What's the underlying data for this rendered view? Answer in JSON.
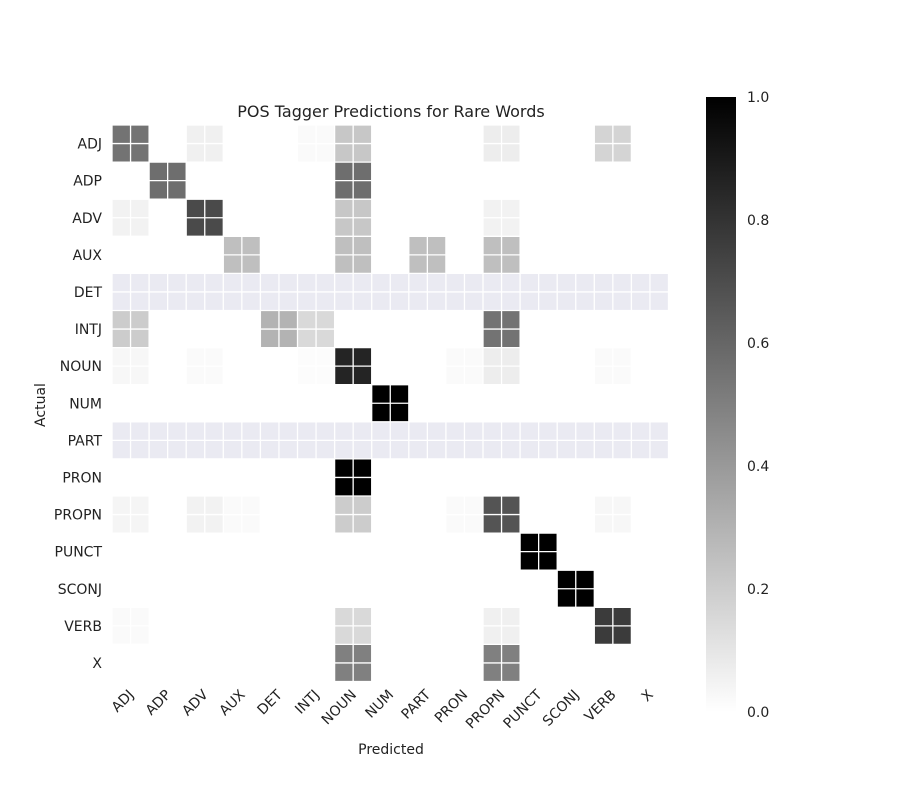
{
  "chart_data": {
    "type": "heatmap",
    "title": "POS Tagger Predictions for Rare Words",
    "xlabel": "Predicted",
    "ylabel": "Actual",
    "x_categories": [
      "ADJ",
      "ADP",
      "ADV",
      "AUX",
      "DET",
      "INTJ",
      "NOUN",
      "NUM",
      "PART",
      "PRON",
      "PROPN",
      "PUNCT",
      "SCONJ",
      "VERB",
      "X"
    ],
    "y_categories": [
      "ADJ",
      "ADP",
      "ADV",
      "AUX",
      "DET",
      "INTJ",
      "NOUN",
      "NUM",
      "PART",
      "PRON",
      "PROPN",
      "PUNCT",
      "SCONJ",
      "VERB",
      "X"
    ],
    "values": [
      [
        0.55,
        0,
        0.06,
        0,
        0,
        0.02,
        0.22,
        0,
        0,
        0,
        0.07,
        0,
        0,
        0.17,
        0
      ],
      [
        0,
        0.57,
        0,
        0,
        0,
        0,
        0.57,
        0,
        0,
        0,
        0,
        0,
        0,
        0,
        0
      ],
      [
        0.05,
        0,
        0.71,
        0,
        0,
        0,
        0.22,
        0,
        0,
        0,
        0.05,
        0,
        0,
        0,
        0
      ],
      [
        0,
        0,
        0,
        0.25,
        0,
        0,
        0.25,
        0,
        0.25,
        0,
        0.25,
        0,
        0,
        0,
        0
      ],
      [
        null,
        null,
        null,
        null,
        null,
        null,
        null,
        null,
        null,
        null,
        null,
        null,
        null,
        null,
        null
      ],
      [
        0.2,
        0,
        0,
        0,
        0.3,
        0.15,
        0,
        0,
        0,
        0,
        0.55,
        0,
        0,
        0,
        0
      ],
      [
        0.03,
        0,
        0.02,
        0,
        0,
        0.01,
        0.86,
        0,
        0,
        0.02,
        0.07,
        0,
        0,
        0.02,
        0
      ],
      [
        0,
        0,
        0,
        0,
        0,
        0,
        0,
        1.0,
        0,
        0,
        0,
        0,
        0,
        0,
        0
      ],
      [
        null,
        null,
        null,
        null,
        null,
        null,
        null,
        null,
        null,
        null,
        null,
        null,
        null,
        null,
        null
      ],
      [
        0,
        0,
        0,
        0,
        0,
        0,
        1.0,
        0,
        0,
        0,
        0,
        0,
        0,
        0,
        0
      ],
      [
        0.04,
        0,
        0.05,
        0.02,
        0,
        0,
        0.2,
        0,
        0,
        0.02,
        0.67,
        0,
        0,
        0.03,
        0
      ],
      [
        0,
        0,
        0,
        0,
        0,
        0,
        0,
        0,
        0,
        0,
        0,
        1.0,
        0,
        0,
        0
      ],
      [
        0,
        0,
        0,
        0,
        0,
        0,
        0,
        0,
        0,
        0,
        0,
        0,
        1.0,
        0,
        0
      ],
      [
        0.02,
        0,
        0,
        0,
        0,
        0,
        0.15,
        0,
        0,
        0,
        0.06,
        0,
        0,
        0.77,
        0
      ],
      [
        0,
        0,
        0,
        0,
        0,
        0,
        0.5,
        0,
        0,
        0,
        0.5,
        0,
        0,
        0,
        0
      ]
    ],
    "nan_color": "#eaeaf2",
    "colorscale": [
      "#ffffff",
      "#000000"
    ],
    "colorbar": {
      "range": [
        0.0,
        1.0
      ],
      "ticks": [
        "0.0",
        "0.2",
        "0.4",
        "0.6",
        "0.8",
        "1.0"
      ]
    },
    "grid": true
  }
}
